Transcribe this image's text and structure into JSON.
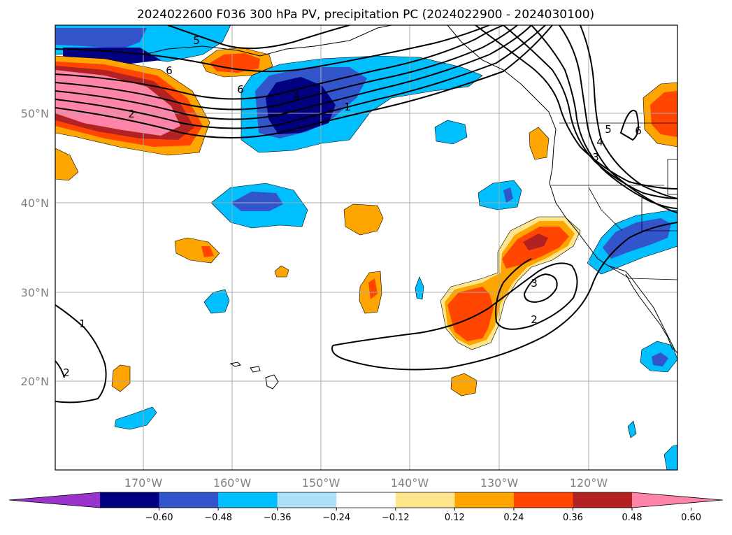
{
  "title": "2024022600 F036 300 hPa PV, precipitation PC (2024022900 - 2024030100)",
  "latitude_labels": [
    "50°N",
    "40°N",
    "30°N",
    "20°N"
  ],
  "longitude_labels": [
    "170°W",
    "160°W",
    "150°W",
    "140°W",
    "130°W",
    "120°W"
  ],
  "colorbar": {
    "tick_labels": [
      "−0.60",
      "−0.48",
      "−0.36",
      "−0.24",
      "−0.12",
      "0.12",
      "0.24",
      "0.36",
      "0.48",
      "0.60"
    ],
    "colors": [
      "#9933CC",
      "#000080",
      "#3355CC",
      "#00BFFF",
      "#ADE1FA",
      "#FFFFFF",
      "#FFE68C",
      "#FFA500",
      "#FF4500",
      "#B22222",
      "#FF85A8"
    ]
  },
  "contour_labels": [
    "5",
    "6",
    "6",
    "4",
    "2",
    "1",
    "1",
    "2",
    "3",
    "2",
    "5",
    "4",
    "3",
    "6"
  ]
}
